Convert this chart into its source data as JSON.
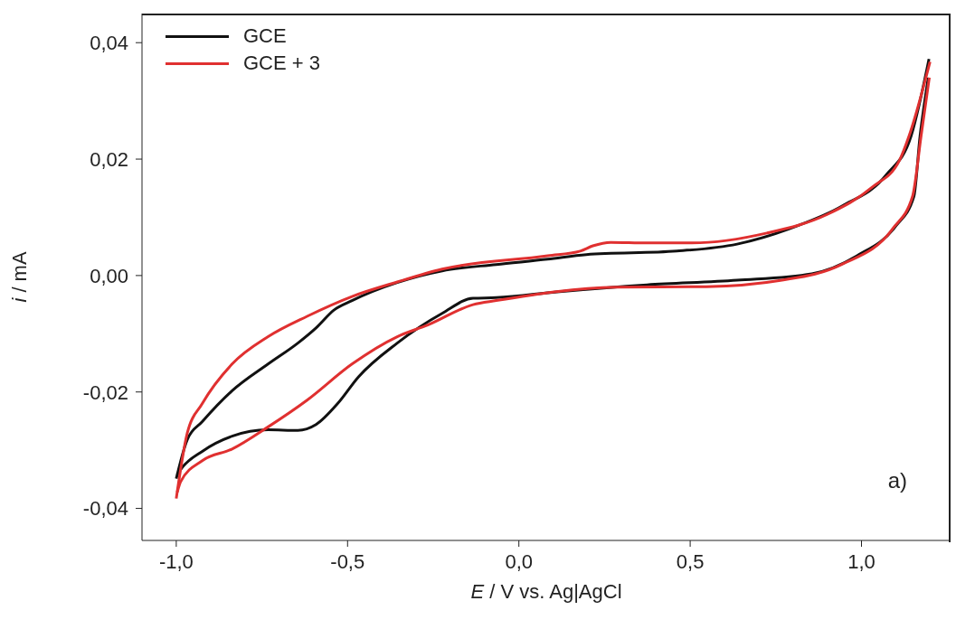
{
  "chart_data": {
    "type": "line",
    "xlabel": "E / V vs. Ag|AgCl",
    "ylabel": "i / mA",
    "legend": "top left",
    "grid": false,
    "marker": "none",
    "line_style": "solid",
    "xlim": [
      -1.1,
      1.26
    ],
    "ylim": [
      -0.0455,
      0.045
    ],
    "xticks": [
      {
        "value": -1,
        "label": "-1,0"
      },
      {
        "value": -0.5,
        "label": "-0,5"
      },
      {
        "value": 0,
        "label": "0,0"
      },
      {
        "value": 0.5,
        "label": "0,5"
      },
      {
        "value": 1,
        "label": "1,0"
      }
    ],
    "yticks": [
      {
        "value": -0.04,
        "label": "-0,04"
      },
      {
        "value": -0.02,
        "label": "-0,02"
      },
      {
        "value": 0,
        "label": "0,00"
      },
      {
        "value": 0.02,
        "label": "0,02"
      },
      {
        "value": 0.04,
        "label": "0,04"
      }
    ],
    "annotations": [
      "a)"
    ],
    "series": [
      {
        "name": "GCE",
        "color": "#111111",
        "x": [
          -1.0,
          -0.968,
          -0.924,
          -0.837,
          -0.732,
          -0.645,
          -0.592,
          -0.539,
          -0.487,
          -0.355,
          -0.224,
          -0.066,
          0.084,
          0.197,
          0.461,
          0.637,
          0.811,
          0.942,
          1.074,
          1.145,
          1.197
        ],
        "values": [
          -0.0349,
          -0.0282,
          -0.0251,
          -0.0198,
          -0.0152,
          -0.0116,
          -0.009,
          -0.0059,
          -0.0043,
          -0.0012,
          0.0008,
          0.0019,
          0.0028,
          0.0036,
          0.0042,
          0.0054,
          0.0085,
          0.0119,
          0.0174,
          0.024,
          0.0372
        ]
      },
      {
        "color": "#111111",
        "x": [
          -0.997,
          -0.987,
          -0.924,
          -0.837,
          -0.732,
          -0.645,
          -0.592,
          -0.529,
          -0.468,
          -0.355,
          -0.224,
          -0.134,
          -0.066,
          0.111,
          0.374,
          0.637,
          0.855,
          0.987,
          1.1,
          1.153,
          1.171,
          1.195
        ],
        "values": [
          -0.0342,
          -0.0333,
          -0.0302,
          -0.0276,
          -0.0265,
          -0.0266,
          -0.0256,
          -0.022,
          -0.0174,
          -0.0116,
          -0.0065,
          -0.0039,
          -0.0038,
          -0.0028,
          -0.0016,
          -0.0008,
          0.0003,
          0.0034,
          0.0085,
          0.0136,
          0.024,
          0.034
        ]
      },
      {
        "name": "GCE + 3",
        "color": "#e03030",
        "x": [
          -1.0,
          -0.968,
          -0.924,
          -0.837,
          -0.732,
          -0.618,
          -0.487,
          -0.355,
          -0.224,
          0.084,
          0.179,
          0.216,
          0.268,
          0.374,
          0.505,
          0.724,
          0.9,
          1.032,
          1.111,
          1.139,
          1.2
        ],
        "values": [
          -0.0383,
          -0.0271,
          -0.022,
          -0.0152,
          -0.0105,
          -0.007,
          -0.0036,
          -0.0011,
          0.0011,
          0.0034,
          0.0042,
          0.0051,
          0.0057,
          0.0056,
          0.0056,
          0.0073,
          0.0105,
          0.0152,
          0.0198,
          0.024,
          0.0367
        ]
      },
      {
        "color": "#e03030",
        "x": [
          -0.997,
          -0.987,
          -0.924,
          -0.837,
          -0.732,
          -0.618,
          -0.487,
          -0.355,
          -0.266,
          -0.134,
          -0.066,
          0.284,
          0.547,
          0.768,
          0.942,
          1.092,
          1.149,
          1.174,
          1.198
        ],
        "values": [
          -0.0372,
          -0.0354,
          -0.0318,
          -0.0298,
          -0.026,
          -0.0214,
          -0.0152,
          -0.0105,
          -0.0085,
          -0.005,
          -0.0043,
          -0.002,
          -0.0019,
          -0.0008,
          0.0019,
          0.0081,
          0.0136,
          0.024,
          0.034
        ]
      }
    ]
  }
}
